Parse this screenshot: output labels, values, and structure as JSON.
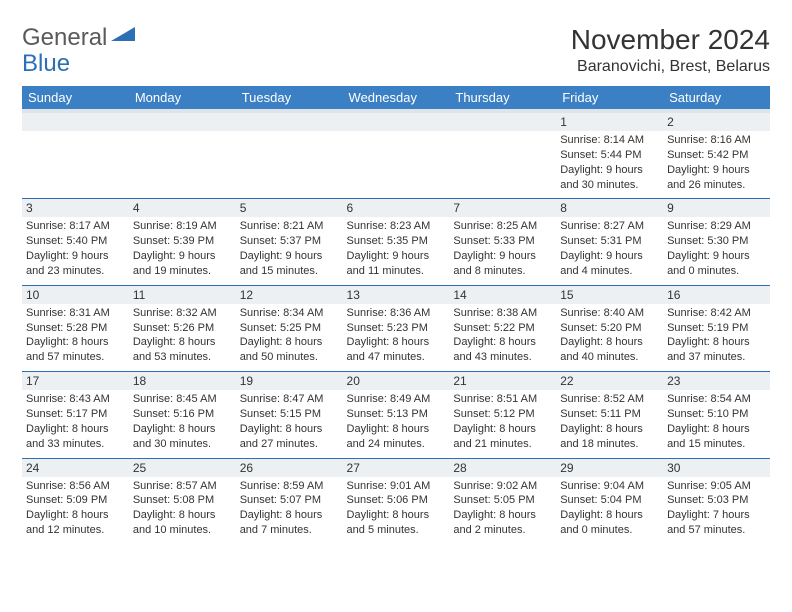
{
  "logo": {
    "text1": "General",
    "text2": "Blue"
  },
  "title": "November 2024",
  "location": "Baranovichi, Brest, Belarus",
  "columns": [
    "Sunday",
    "Monday",
    "Tuesday",
    "Wednesday",
    "Thursday",
    "Friday",
    "Saturday"
  ],
  "colors": {
    "header_bg": "#3b7fc4",
    "header_text": "#ffffff",
    "daynum_bg": "#edf0f2",
    "border": "#2c6fb5",
    "text": "#333333",
    "logo_gray": "#5a5a5a",
    "logo_blue": "#2c6fb5"
  },
  "weeks": [
    [
      null,
      null,
      null,
      null,
      null,
      {
        "n": "1",
        "sr": "8:14 AM",
        "ss": "5:44 PM",
        "dl": "9 hours and 30 minutes."
      },
      {
        "n": "2",
        "sr": "8:16 AM",
        "ss": "5:42 PM",
        "dl": "9 hours and 26 minutes."
      }
    ],
    [
      {
        "n": "3",
        "sr": "8:17 AM",
        "ss": "5:40 PM",
        "dl": "9 hours and 23 minutes."
      },
      {
        "n": "4",
        "sr": "8:19 AM",
        "ss": "5:39 PM",
        "dl": "9 hours and 19 minutes."
      },
      {
        "n": "5",
        "sr": "8:21 AM",
        "ss": "5:37 PM",
        "dl": "9 hours and 15 minutes."
      },
      {
        "n": "6",
        "sr": "8:23 AM",
        "ss": "5:35 PM",
        "dl": "9 hours and 11 minutes."
      },
      {
        "n": "7",
        "sr": "8:25 AM",
        "ss": "5:33 PM",
        "dl": "9 hours and 8 minutes."
      },
      {
        "n": "8",
        "sr": "8:27 AM",
        "ss": "5:31 PM",
        "dl": "9 hours and 4 minutes."
      },
      {
        "n": "9",
        "sr": "8:29 AM",
        "ss": "5:30 PM",
        "dl": "9 hours and 0 minutes."
      }
    ],
    [
      {
        "n": "10",
        "sr": "8:31 AM",
        "ss": "5:28 PM",
        "dl": "8 hours and 57 minutes."
      },
      {
        "n": "11",
        "sr": "8:32 AM",
        "ss": "5:26 PM",
        "dl": "8 hours and 53 minutes."
      },
      {
        "n": "12",
        "sr": "8:34 AM",
        "ss": "5:25 PM",
        "dl": "8 hours and 50 minutes."
      },
      {
        "n": "13",
        "sr": "8:36 AM",
        "ss": "5:23 PM",
        "dl": "8 hours and 47 minutes."
      },
      {
        "n": "14",
        "sr": "8:38 AM",
        "ss": "5:22 PM",
        "dl": "8 hours and 43 minutes."
      },
      {
        "n": "15",
        "sr": "8:40 AM",
        "ss": "5:20 PM",
        "dl": "8 hours and 40 minutes."
      },
      {
        "n": "16",
        "sr": "8:42 AM",
        "ss": "5:19 PM",
        "dl": "8 hours and 37 minutes."
      }
    ],
    [
      {
        "n": "17",
        "sr": "8:43 AM",
        "ss": "5:17 PM",
        "dl": "8 hours and 33 minutes."
      },
      {
        "n": "18",
        "sr": "8:45 AM",
        "ss": "5:16 PM",
        "dl": "8 hours and 30 minutes."
      },
      {
        "n": "19",
        "sr": "8:47 AM",
        "ss": "5:15 PM",
        "dl": "8 hours and 27 minutes."
      },
      {
        "n": "20",
        "sr": "8:49 AM",
        "ss": "5:13 PM",
        "dl": "8 hours and 24 minutes."
      },
      {
        "n": "21",
        "sr": "8:51 AM",
        "ss": "5:12 PM",
        "dl": "8 hours and 21 minutes."
      },
      {
        "n": "22",
        "sr": "8:52 AM",
        "ss": "5:11 PM",
        "dl": "8 hours and 18 minutes."
      },
      {
        "n": "23",
        "sr": "8:54 AM",
        "ss": "5:10 PM",
        "dl": "8 hours and 15 minutes."
      }
    ],
    [
      {
        "n": "24",
        "sr": "8:56 AM",
        "ss": "5:09 PM",
        "dl": "8 hours and 12 minutes."
      },
      {
        "n": "25",
        "sr": "8:57 AM",
        "ss": "5:08 PM",
        "dl": "8 hours and 10 minutes."
      },
      {
        "n": "26",
        "sr": "8:59 AM",
        "ss": "5:07 PM",
        "dl": "8 hours and 7 minutes."
      },
      {
        "n": "27",
        "sr": "9:01 AM",
        "ss": "5:06 PM",
        "dl": "8 hours and 5 minutes."
      },
      {
        "n": "28",
        "sr": "9:02 AM",
        "ss": "5:05 PM",
        "dl": "8 hours and 2 minutes."
      },
      {
        "n": "29",
        "sr": "9:04 AM",
        "ss": "5:04 PM",
        "dl": "8 hours and 0 minutes."
      },
      {
        "n": "30",
        "sr": "9:05 AM",
        "ss": "5:03 PM",
        "dl": "7 hours and 57 minutes."
      }
    ]
  ],
  "labels": {
    "sunrise": "Sunrise:",
    "sunset": "Sunset:",
    "daylight": "Daylight:"
  }
}
